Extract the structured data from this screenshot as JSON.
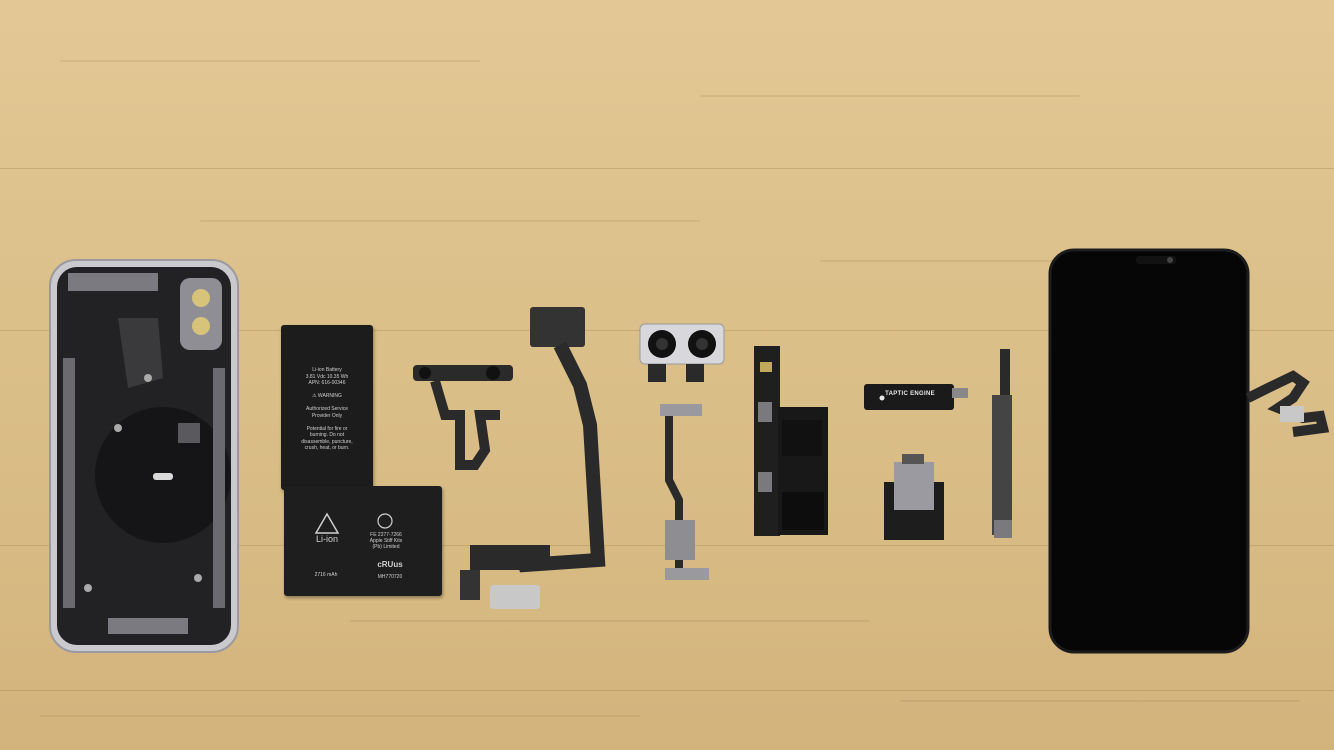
{
  "scene": {
    "battery_top_text": "Li-ion Battery\n3.81 Vdc 10.35 Wh\nAPN: 616-00346\n\n⚠ WARNING\n\nAuthorized Service\nProvider Only\n\nPotential for fire or\nburning. Do not\ndisassemble, puncture,\ncrush, heat, or burn.",
    "battery_bottom_left": "Li-ion",
    "battery_bottom_right": "FE 2277-7266\nApple Stiff Kits\n(Pb) Limited",
    "battery_bottom_model": "2716 mAh",
    "battery_bottom_cert": "cRUus",
    "battery_bottom_code": "MH770720",
    "taptic_label": " TAPTIC ENGINE"
  },
  "colors": {
    "wood": "#dcc08a",
    "component_black": "#1c1c1c",
    "flex_cable": "#2a2a2a",
    "metal": "#b8b8bc",
    "screen": "#060606"
  },
  "icons": [
    "recycle-icon",
    "ul-mark-icon",
    "warning-icon",
    "apple-logo-icon"
  ]
}
